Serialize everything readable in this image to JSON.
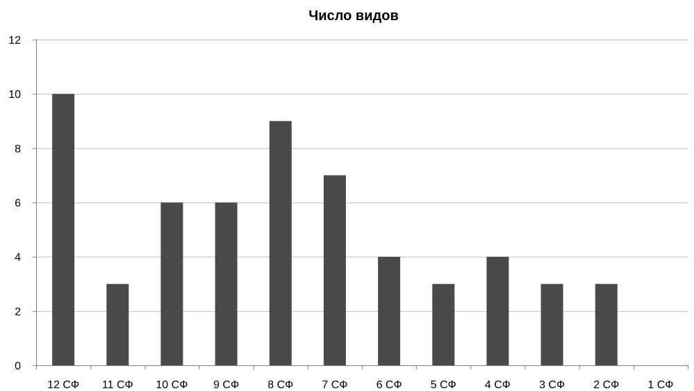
{
  "chart_data": {
    "type": "bar",
    "title": "Число видов",
    "xlabel": "",
    "ylabel": "",
    "categories": [
      "12 СФ",
      "11 СФ",
      "10 СФ",
      "9 СФ",
      "8 СФ",
      "7 СФ",
      "6 СФ",
      "5 СФ",
      "4 СФ",
      "3 СФ",
      "2 СФ",
      "1 СФ"
    ],
    "values": [
      10,
      3,
      6,
      6,
      9,
      7,
      4,
      3,
      4,
      3,
      3,
      0
    ],
    "ylim": [
      0,
      12
    ],
    "yticks": [
      0,
      2,
      4,
      6,
      8,
      10,
      12
    ],
    "grid": true,
    "legend": "none",
    "bar_color": "#4a4a4a",
    "grid_color": "#bfbfbf",
    "axis_color": "#7f7f7f"
  }
}
